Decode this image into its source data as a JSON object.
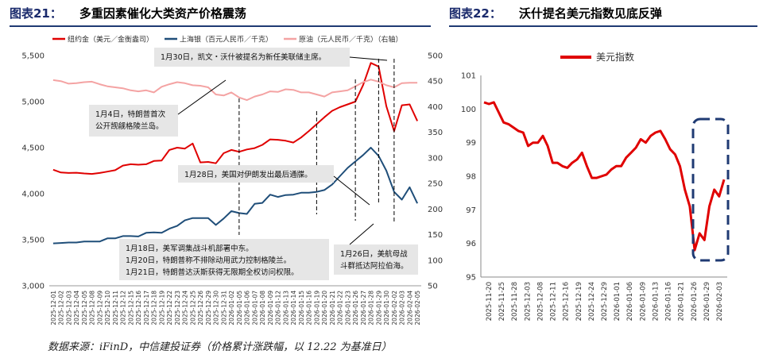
{
  "titles": {
    "chart1_num": "图表21：",
    "chart1_text": "多重因素催化大类资产价格震荡",
    "chart2_num": "图表22：",
    "chart2_text": "沃什提名美元指数见底反弹"
  },
  "source": "数据来源：iFinD，中信建投证券（价格累计涨跌幅，以 12.22 为基准日）",
  "colors": {
    "gold": "#e00000",
    "silver": "#1f4e79",
    "oil": "#f4a3a3",
    "usd": "#e00000",
    "annotation_bg": "#e6e6e6",
    "dash_box": "#1f3a73"
  },
  "chart_data": [
    {
      "type": "line",
      "title": "多重因素催化大类资产价格震荡",
      "x": [
        "2025-12-01",
        "2025-12-02",
        "2025-12-03",
        "2025-12-04",
        "2025-12-05",
        "2025-12-08",
        "2025-12-09",
        "2025-12-10",
        "2025-12-11",
        "2025-12-12",
        "2025-12-15",
        "2025-12-16",
        "2025-12-17",
        "2025-12-18",
        "2025-12-19",
        "2025-12-22",
        "2025-12-23",
        "2025-12-24",
        "2025-12-25",
        "2025-12-26",
        "2025-12-29",
        "2025-12-30",
        "2025-12-31",
        "2026-01-02",
        "2026-01-05",
        "2026-01-06",
        "2026-01-07",
        "2026-01-08",
        "2026-01-09",
        "2026-01-12",
        "2026-01-13",
        "2026-01-14",
        "2026-01-15",
        "2026-01-16",
        "2026-01-19",
        "2026-01-20",
        "2026-01-21",
        "2026-01-22",
        "2026-01-23",
        "2026-01-26",
        "2026-01-27",
        "2026-01-28",
        "2026-01-29",
        "2026-01-30",
        "2026-02-02",
        "2026-02-03",
        "2026-02-04",
        "2026-02-05"
      ],
      "x_tick_labels": [
        "2025-12-01",
        "2025-12-02",
        "2025-12-03",
        "2025-12-04",
        "2025-12-05",
        "2025-12-08",
        "2025-12-09",
        "2025-12-10",
        "2025-12-11",
        "2025-12-12",
        "2025-12-15",
        "2025-12-16",
        "2025-12-17",
        "2025-12-18",
        "2025-12-19",
        "2025-12-22",
        "2025-12-23",
        "2025-12-24",
        "2025-12-25",
        "2025-12-26",
        "2025-12-29",
        "2025-12-30",
        "2025-12-31",
        "2026-01-02",
        "2026-01-05",
        "2026-01-06",
        "2026-01-07",
        "2026-01-08",
        "2026-01-09",
        "2026-01-12",
        "2026-01-13",
        "2026-01-14",
        "2026-01-15",
        "2026-01-16",
        "2026-01-19",
        "2026-01-20",
        "2026-01-21",
        "2026-01-22",
        "2026-01-23",
        "2026-01-26",
        "2026-01-27",
        "2026-01-28",
        "2026-01-29",
        "2026-01-30",
        "2026-02-02",
        "2026-02-03",
        "2026-02-04",
        "2026-02-05"
      ],
      "y_left": {
        "min": 3000,
        "max": 5500,
        "ticks": [
          "3,000",
          "3,500",
          "4,000",
          "4,500",
          "5,000",
          "5,500"
        ]
      },
      "y_right": {
        "min": 50,
        "max": 500,
        "ticks": [
          "50",
          "100",
          "150",
          "200",
          "250",
          "300",
          "350",
          "400",
          "450",
          "500"
        ]
      },
      "series": [
        {
          "name": "纽约金（美元／金衡盎司）",
          "axis": "left",
          "color": "#e00000",
          "values": [
            4260,
            4230,
            4225,
            4228,
            4220,
            4215,
            4225,
            4240,
            4255,
            4305,
            4320,
            4315,
            4320,
            4355,
            4360,
            4475,
            4500,
            4490,
            4545,
            4340,
            4345,
            4330,
            4440,
            4475,
            4455,
            4480,
            4495,
            4530,
            4590,
            4585,
            4575,
            4555,
            4610,
            4680,
            4755,
            4830,
            4900,
            4940,
            4970,
            5000,
            5180,
            5420,
            5380,
            4950,
            4680,
            4960,
            4970,
            4790
          ]
        },
        {
          "name": "上海银（百元人民币／千克）",
          "axis": "left",
          "color": "#1f4e79",
          "values": [
            3460,
            3465,
            3470,
            3470,
            3480,
            3480,
            3480,
            3515,
            3515,
            3540,
            3540,
            3535,
            3575,
            3580,
            3575,
            3620,
            3650,
            3710,
            3735,
            3735,
            3735,
            3660,
            3730,
            3810,
            3790,
            3780,
            3890,
            3900,
            3990,
            3965,
            3985,
            3990,
            4010,
            4010,
            4020,
            4040,
            4100,
            4190,
            4280,
            4350,
            4420,
            4500,
            4410,
            4250,
            4020,
            3935,
            4070,
            3895
          ]
        },
        {
          "name": "原油（元人民币／千克）（右轴）",
          "axis": "right",
          "color": "#f4a3a3",
          "values": [
            452,
            450,
            445,
            446,
            448,
            449,
            444,
            440,
            438,
            436,
            432,
            430,
            432,
            428,
            439,
            444,
            448,
            446,
            442,
            441,
            438,
            424,
            422,
            428,
            418,
            413,
            420,
            424,
            430,
            429,
            434,
            433,
            428,
            428,
            424,
            420,
            428,
            430,
            432,
            440,
            448,
            453,
            449,
            442,
            438,
            446,
            447,
            447
          ]
        }
      ],
      "annotations": [
        {
          "text": "1月30日，凯文・沃什被提名为新任美联储主席。"
        },
        {
          "line1": "1月4日，特朗普首次",
          "line2": "公开觊觎格陵兰岛。"
        },
        {
          "text": "1月28日，美国对伊朗发出最后通牒。"
        },
        {
          "line1": "1月18日，美军调集战斗机部署中东。",
          "line2": "1月20日，特朗普称不排除动用武力控制格陵兰。",
          "line3": "1月21日，特朗普达沃斯获得无限期全权访问权限。"
        },
        {
          "line1": "1月26日，美航母战",
          "line2": "斗群抵达阿拉伯海。"
        }
      ]
    },
    {
      "type": "line",
      "title": "沃什提名美元指数见底反弹",
      "x_tick_labels": [
        "2025-11-20",
        "2025-11-25",
        "2025-11-28",
        "2025-12-03",
        "2025-12-08",
        "2025-12-11",
        "2025-12-16",
        "2025-12-19",
        "2025-12-24",
        "2025-12-29",
        "2026-01-01",
        "2026-01-06",
        "2026-01-09",
        "2026-01-13",
        "2026-01-16",
        "2026-01-21",
        "2026-01-26",
        "2026-01-29",
        "2026-02-03"
      ],
      "ylim": [
        95,
        101
      ],
      "y_ticks": [
        "95",
        "96",
        "97",
        "98",
        "99",
        "100",
        "101"
      ],
      "legend": "top",
      "series": [
        {
          "name": "美元指数",
          "color": "#e00000",
          "values": [
            100.2,
            100.15,
            100.2,
            99.9,
            99.6,
            99.55,
            99.45,
            99.35,
            99.3,
            98.9,
            99.0,
            99.0,
            99.2,
            98.9,
            98.4,
            98.4,
            98.3,
            98.25,
            98.4,
            98.5,
            98.7,
            98.3,
            97.95,
            97.95,
            98.0,
            98.05,
            98.2,
            98.3,
            98.3,
            98.55,
            98.7,
            98.85,
            99.1,
            99.0,
            99.2,
            99.3,
            99.35,
            99.1,
            98.8,
            98.65,
            98.3,
            97.6,
            97.1,
            95.8,
            96.3,
            96.1,
            97.1,
            97.6,
            97.4,
            97.9
          ]
        }
      ]
    }
  ]
}
